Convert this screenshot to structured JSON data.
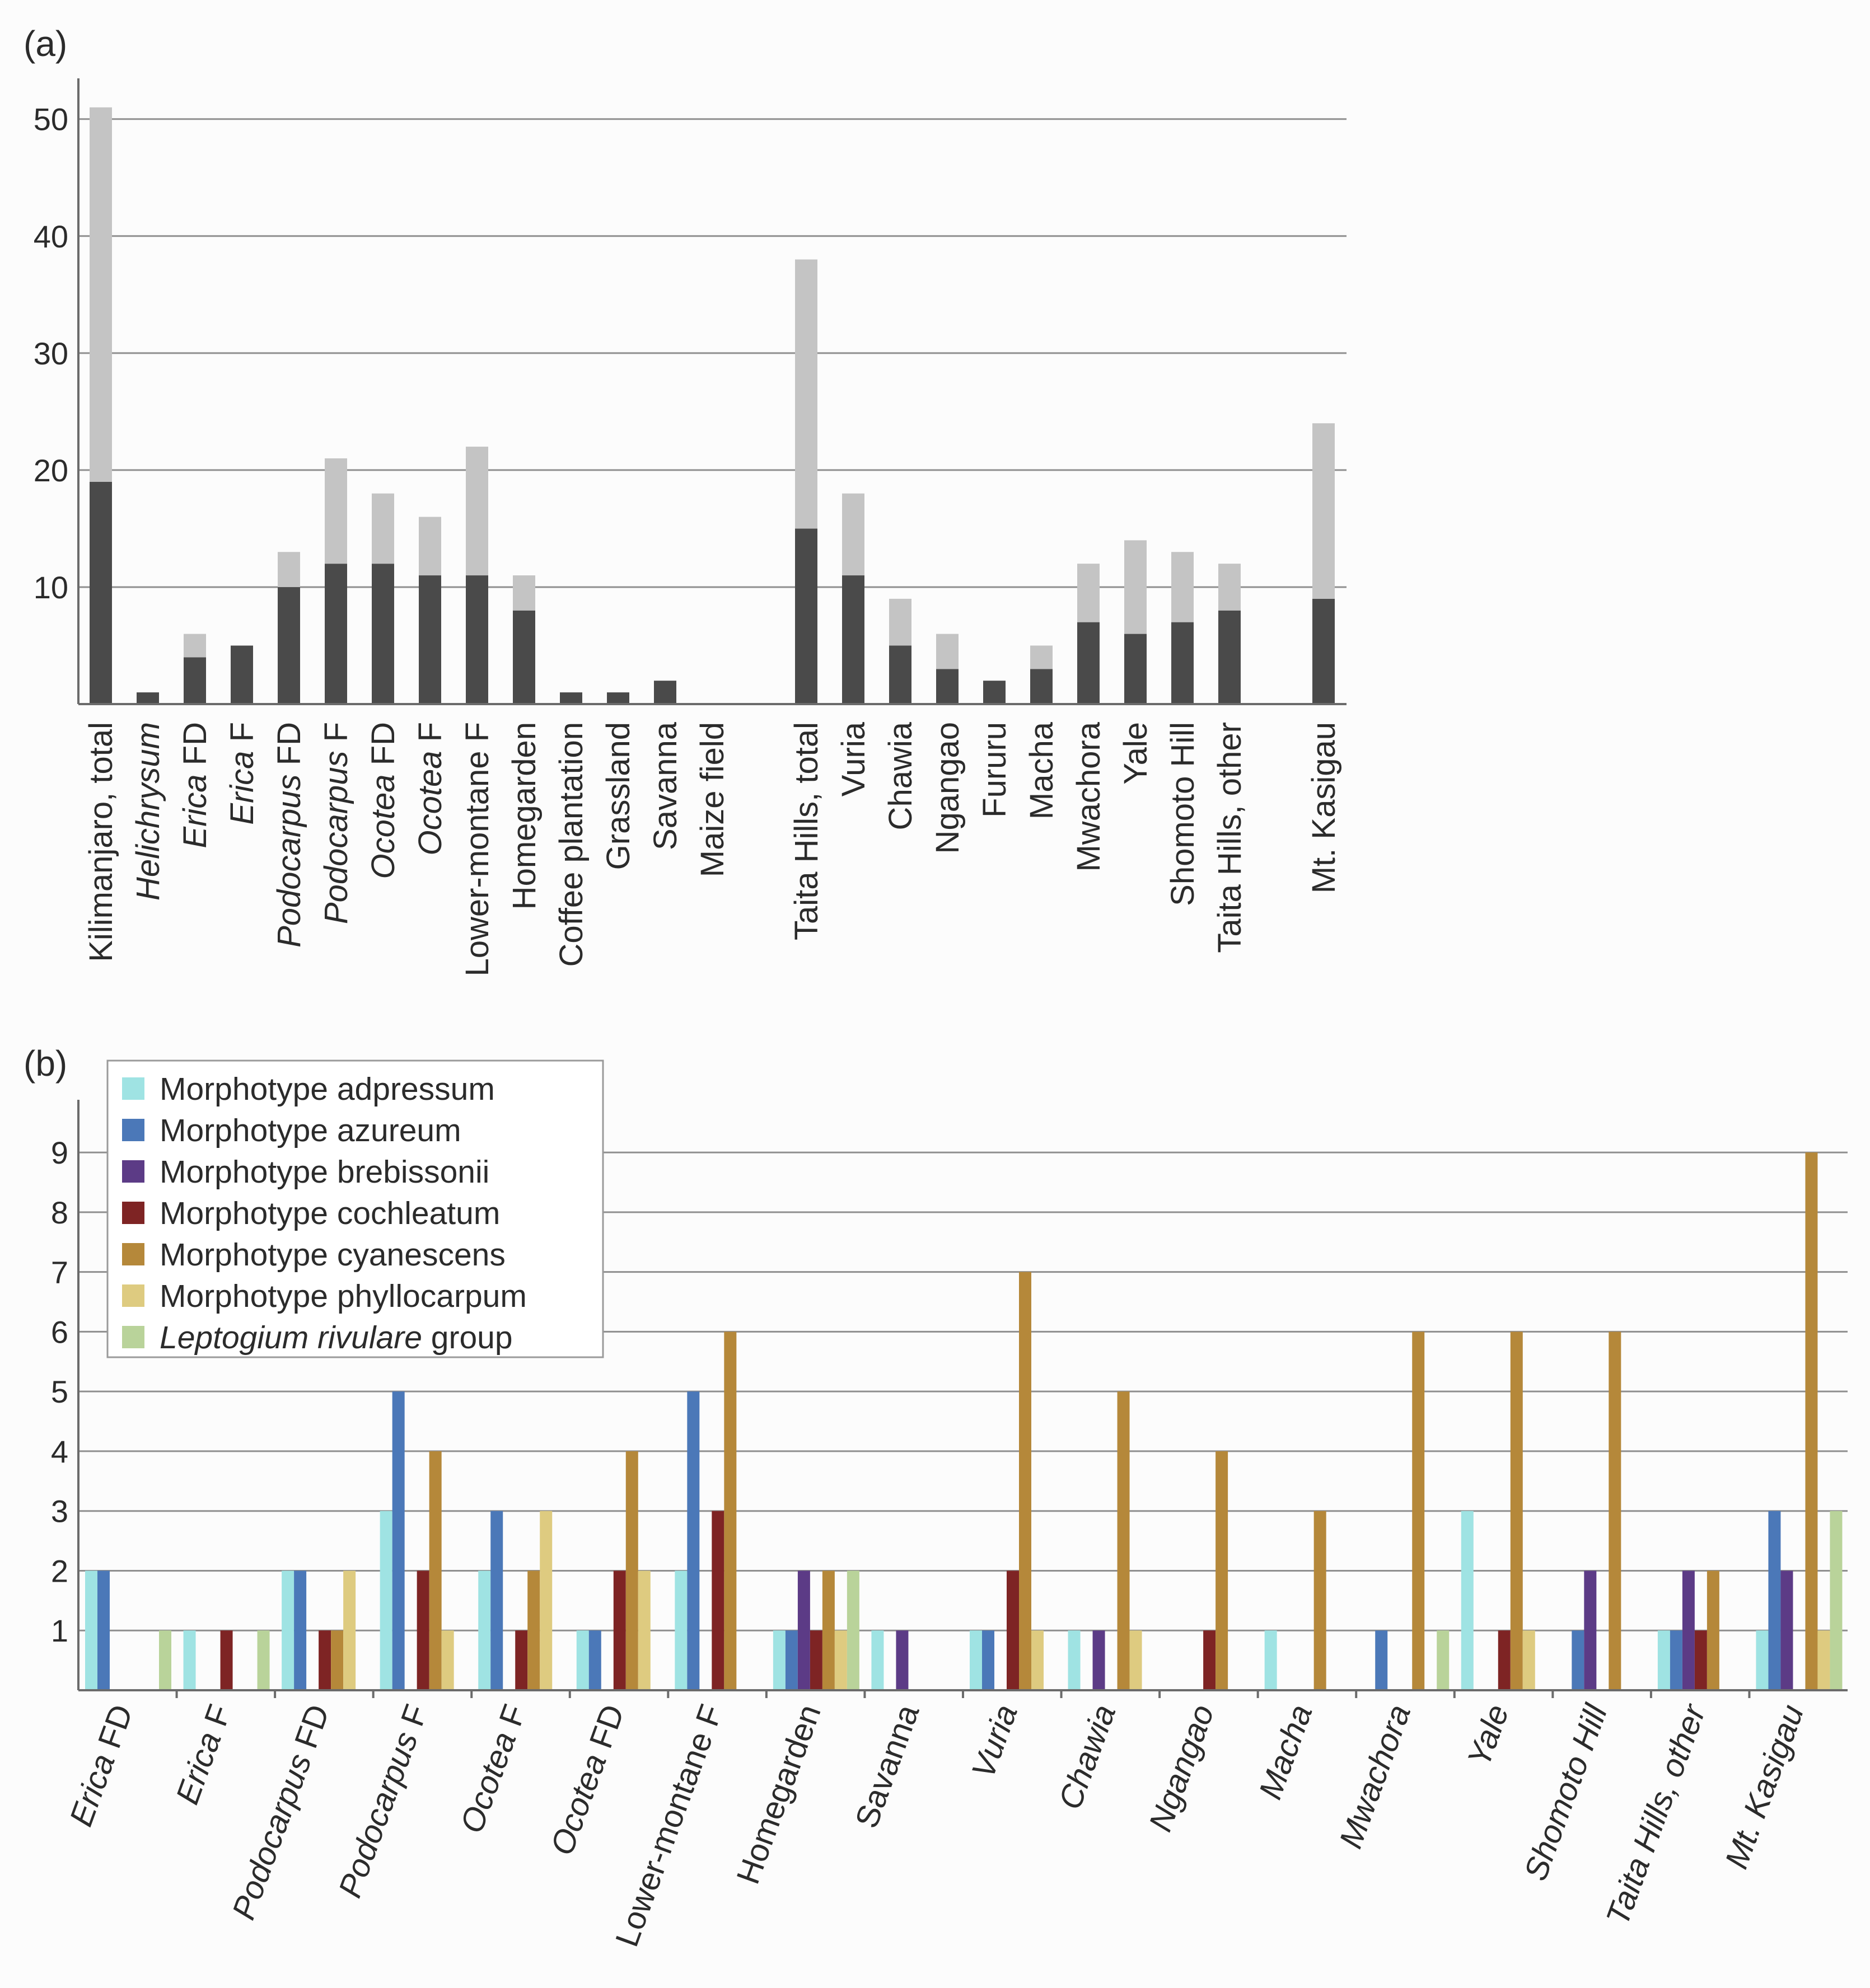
{
  "panel_a": {
    "label": "(a)"
  },
  "panel_b": {
    "label": "(b)"
  },
  "chart_data": [
    {
      "type": "bar",
      "stacked": true,
      "title": "",
      "xlabel": "",
      "ylabel": "",
      "ylim": [
        0,
        53
      ],
      "yticks": [
        10,
        20,
        30,
        40,
        50
      ],
      "grid": true,
      "categories": [
        {
          "text": "Kilimanjaro, total",
          "italic": "",
          "rest": "Kilimanjaro, total"
        },
        {
          "text": "Helichrysum",
          "italic": "Helichrysum",
          "rest": ""
        },
        {
          "text": "Erica FD",
          "italic": "Erica",
          "rest": " FD"
        },
        {
          "text": "Erica F",
          "italic": "Erica",
          "rest": " F"
        },
        {
          "text": "Podocarpus FD",
          "italic": "Podocarpus",
          "rest": " FD"
        },
        {
          "text": "Podocarpus F",
          "italic": "Podocarpus",
          "rest": " F"
        },
        {
          "text": "Ocotea FD",
          "italic": "Ocotea",
          "rest": " FD"
        },
        {
          "text": "Ocotea F",
          "italic": "Ocotea",
          "rest": " F"
        },
        {
          "text": "Lower-montane F",
          "italic": "",
          "rest": "Lower-montane F"
        },
        {
          "text": "Homegarden",
          "italic": "",
          "rest": "Homegarden"
        },
        {
          "text": "Coffee plantation",
          "italic": "",
          "rest": "Coffee plantation"
        },
        {
          "text": "Grassland",
          "italic": "",
          "rest": "Grassland"
        },
        {
          "text": "Savanna",
          "italic": "",
          "rest": "Savanna"
        },
        {
          "text": "Maize field",
          "italic": "",
          "rest": "Maize field"
        },
        {
          "text": "Taita Hills, total",
          "italic": "",
          "rest": "Taita Hills, total"
        },
        {
          "text": "Vuria",
          "italic": "",
          "rest": "Vuria"
        },
        {
          "text": "Chawia",
          "italic": "",
          "rest": "Chawia"
        },
        {
          "text": "Ngangao",
          "italic": "",
          "rest": "Ngangao"
        },
        {
          "text": "Fururu",
          "italic": "",
          "rest": "Fururu"
        },
        {
          "text": "Macha",
          "italic": "",
          "rest": "Macha"
        },
        {
          "text": "Mwachora",
          "italic": "",
          "rest": "Mwachora"
        },
        {
          "text": "Yale",
          "italic": "",
          "rest": "Yale"
        },
        {
          "text": "Shomoto Hill",
          "italic": "",
          "rest": "Shomoto Hill"
        },
        {
          "text": "Taita Hills, other",
          "italic": "",
          "rest": "Taita Hills, other"
        },
        {
          "text": "Mt. Kasigau",
          "italic": "",
          "rest": "Mt. Kasigau"
        }
      ],
      "series": [
        {
          "name": "dark",
          "color": "#4a4a4a",
          "values": [
            19,
            1,
            4,
            5,
            10,
            12,
            12,
            11,
            11,
            8,
            1,
            1,
            2,
            0,
            15,
            11,
            5,
            3,
            2,
            3,
            7,
            6,
            7,
            8,
            9
          ]
        },
        {
          "name": "light",
          "color": "#c4c4c4",
          "values": [
            32,
            0,
            2,
            0,
            3,
            9,
            6,
            5,
            11,
            3,
            0,
            0,
            0,
            0,
            23,
            7,
            4,
            3,
            0,
            2,
            5,
            8,
            6,
            4,
            15
          ]
        }
      ]
    },
    {
      "type": "bar",
      "title": "",
      "xlabel": "",
      "ylabel": "",
      "ylim": [
        0,
        9.6
      ],
      "yticks": [
        1,
        2,
        3,
        4,
        5,
        6,
        7,
        8,
        9
      ],
      "grid": true,
      "legend_position": "top-left",
      "categories": [
        {
          "text": "Erica FD",
          "italic": "Erica",
          "rest": " FD"
        },
        {
          "text": "Erica F",
          "italic": "Erica",
          "rest": " F"
        },
        {
          "text": "Podocarpus FD",
          "italic": "Podocarpus",
          "rest": " FD"
        },
        {
          "text": "Podocarpus F",
          "italic": "Podocarpus",
          "rest": " F"
        },
        {
          "text": "Ocotea F",
          "italic": "Ocotea",
          "rest": " F"
        },
        {
          "text": "Ocotea FD",
          "italic": "Ocotea",
          "rest": " FD"
        },
        {
          "text": "Lower-montane F",
          "italic": "",
          "rest": "Lower-montane F"
        },
        {
          "text": "Homegarden",
          "italic": "",
          "rest": "Homegarden"
        },
        {
          "text": "Savanna",
          "italic": "",
          "rest": "Savanna"
        },
        {
          "text": "Vuria",
          "italic": "Vuria",
          "rest": ""
        },
        {
          "text": "Chawia",
          "italic": "Chawia",
          "rest": ""
        },
        {
          "text": "Ngangao",
          "italic": "Ngangao",
          "rest": ""
        },
        {
          "text": "Macha",
          "italic": "Macha",
          "rest": ""
        },
        {
          "text": "Mwachora",
          "italic": "Mwachora",
          "rest": ""
        },
        {
          "text": "Yale",
          "italic": "Yale",
          "rest": ""
        },
        {
          "text": "Shomoto Hill",
          "italic": "Shomoto Hill",
          "rest": ""
        },
        {
          "text": "Taita Hills, other",
          "italic": "Taita Hills, other",
          "rest": ""
        },
        {
          "text": "Mt. Kasigau",
          "italic": "Mt. Kasigau",
          "rest": ""
        }
      ],
      "series": [
        {
          "name": "Morphotype adpressum",
          "italic": "",
          "rest": "Morphotype adpressum",
          "color": "#9fe3e3",
          "values": [
            2,
            1,
            2,
            3,
            2,
            1,
            2,
            1,
            1,
            1,
            1,
            0,
            1,
            0,
            3,
            0,
            1,
            1
          ]
        },
        {
          "name": "Morphotype azureum",
          "italic": "",
          "rest": "Morphotype azureum",
          "color": "#4b78b8",
          "values": [
            2,
            0,
            2,
            5,
            3,
            1,
            5,
            1,
            0,
            1,
            0,
            0,
            0,
            1,
            0,
            1,
            1,
            3
          ]
        },
        {
          "name": "Morphotype brebissonii",
          "italic": "",
          "rest": "Morphotype brebissonii",
          "color": "#5c3b86",
          "values": [
            0,
            0,
            0,
            0,
            0,
            0,
            0,
            2,
            1,
            0,
            1,
            0,
            0,
            0,
            0,
            2,
            2,
            2
          ]
        },
        {
          "name": "Morphotype cochleatum",
          "italic": "",
          "rest": "Morphotype cochleatum",
          "color": "#7e2424",
          "values": [
            0,
            1,
            1,
            2,
            1,
            2,
            3,
            1,
            0,
            2,
            0,
            1,
            0,
            0,
            1,
            0,
            1,
            0
          ]
        },
        {
          "name": "Morphotype cyanescens",
          "italic": "",
          "rest": "Morphotype cyanescens",
          "color": "#b5883a",
          "values": [
            0,
            0,
            1,
            4,
            2,
            4,
            6,
            2,
            0,
            7,
            5,
            4,
            3,
            6,
            6,
            6,
            2,
            9
          ]
        },
        {
          "name": "Morphotype phyllocarpum",
          "italic": "",
          "rest": "Morphotype phyllocarpum",
          "color": "#decb80",
          "values": [
            0,
            0,
            2,
            1,
            3,
            2,
            0,
            1,
            0,
            1,
            1,
            0,
            0,
            0,
            1,
            0,
            0,
            1
          ]
        },
        {
          "name": "Leptogium rivulare group",
          "italic": "Leptogium rivulare",
          "rest": " group",
          "color": "#b9d39a",
          "values": [
            1,
            1,
            0,
            0,
            0,
            0,
            0,
            2,
            0,
            0,
            0,
            0,
            0,
            1,
            0,
            0,
            0,
            3
          ]
        }
      ]
    }
  ]
}
